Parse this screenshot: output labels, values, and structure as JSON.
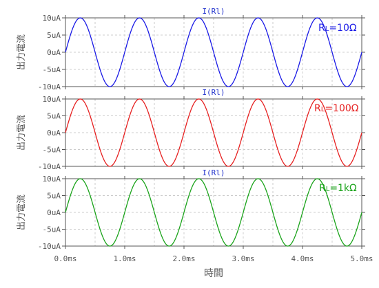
{
  "y_axis_label": "出力電流",
  "x_axis_label": "時間",
  "x_tick_labels": [
    "0.0ms",
    "1.0ms",
    "2.0ms",
    "3.0ms",
    "4.0ms",
    "5.0ms"
  ],
  "y_tick_labels": [
    "10uA",
    "5uA",
    "0uA",
    "-5uA",
    "-10uA"
  ],
  "chart_data": [
    {
      "type": "line",
      "title": "I(Rl)",
      "series": [
        {
          "name": "RL=10Ω",
          "label_main": "R",
          "label_sub": "L",
          "label_rest": "=10Ω",
          "color": "#1a1ae6",
          "amplitude": 10,
          "frequency_khz": 1,
          "phase": 0
        }
      ],
      "xlim": [
        0,
        5
      ],
      "ylim": [
        -10,
        10
      ],
      "x_unit": "ms",
      "y_unit": "uA",
      "grid": true,
      "legend": "top-right"
    },
    {
      "type": "line",
      "title": "I(Rl)",
      "series": [
        {
          "name": "RL=100Ω",
          "label_main": "R",
          "label_sub": "L",
          "label_rest": "=100Ω",
          "color": "#e62020",
          "amplitude": 10,
          "frequency_khz": 1,
          "phase": 0
        }
      ],
      "xlim": [
        0,
        5
      ],
      "ylim": [
        -10,
        10
      ],
      "x_unit": "ms",
      "y_unit": "uA",
      "grid": true,
      "legend": "top-right"
    },
    {
      "type": "line",
      "title": "I(Rl)",
      "series": [
        {
          "name": "RL=1kΩ",
          "label_main": "R",
          "label_sub": "L",
          "label_rest": "=1kΩ",
          "color": "#1aa31a",
          "amplitude": 10,
          "frequency_khz": 1,
          "phase": 0
        }
      ],
      "xlim": [
        0,
        5
      ],
      "ylim": [
        -10,
        10
      ],
      "x_unit": "ms",
      "y_unit": "uA",
      "grid": true,
      "legend": "top-right"
    }
  ],
  "colors": {
    "axis": "#555555",
    "grid": "#cccccc",
    "title": "#2233cc",
    "tick_text": "#555555"
  }
}
